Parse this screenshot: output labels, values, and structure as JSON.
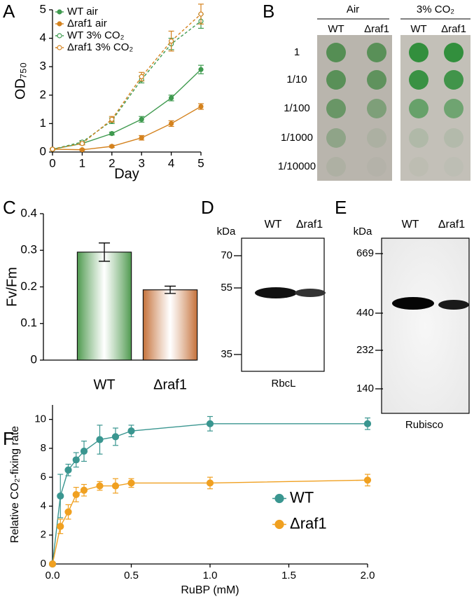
{
  "panel_labels": [
    "A",
    "B",
    "C",
    "D",
    "E",
    "F"
  ],
  "chart_data": [
    {
      "type": "line",
      "xlabel": "Day",
      "ylabel": "OD₇₅₀",
      "x": [
        0,
        1,
        2,
        3,
        4,
        5
      ],
      "xlim": [
        0,
        5
      ],
      "xticks": [
        0,
        1,
        2,
        3,
        4,
        5
      ],
      "ylim": [
        0,
        5
      ],
      "yticks": [
        0,
        1,
        2,
        3,
        4,
        5
      ],
      "legend": "upper left",
      "series": [
        {
          "name": "WT air",
          "color": "#3f9a4f",
          "marker": "filled",
          "dashed": false,
          "values": [
            0.1,
            0.3,
            0.65,
            1.15,
            1.9,
            2.9
          ],
          "errors": [
            0.03,
            0.04,
            0.05,
            0.1,
            0.1,
            0.15
          ]
        },
        {
          "name": "Δraf1 air",
          "color": "#d4821e",
          "marker": "filled",
          "dashed": false,
          "values": [
            0.1,
            0.08,
            0.2,
            0.5,
            1.0,
            1.6
          ],
          "errors": [
            0.03,
            0.03,
            0.04,
            0.08,
            0.1,
            0.1
          ]
        },
        {
          "name": "WT 3% CO₂",
          "color": "#3f9a4f",
          "marker": "open",
          "dashed": true,
          "values": [
            0.1,
            0.35,
            1.1,
            2.55,
            3.8,
            4.6
          ],
          "errors": [
            0.03,
            0.05,
            0.1,
            0.12,
            0.2,
            0.25
          ]
        },
        {
          "name": "Δraf1 3% CO₂",
          "color": "#d4821e",
          "marker": "open",
          "dashed": true,
          "values": [
            0.1,
            0.3,
            1.15,
            2.65,
            3.9,
            4.85
          ],
          "errors": [
            0.03,
            0.05,
            0.1,
            0.15,
            0.35,
            0.35
          ]
        }
      ]
    },
    {
      "type": "bar",
      "ylabel": "Fv/Fm",
      "categories": [
        "WT",
        "Δraf1"
      ],
      "values": [
        0.295,
        0.192
      ],
      "errors": [
        0.025,
        0.01
      ],
      "colors": [
        "#4f9a4f",
        "#c5713a"
      ],
      "ylim": [
        0,
        0.4
      ],
      "yticks": [
        0,
        0.1,
        0.2,
        0.3,
        0.4
      ]
    },
    {
      "type": "line",
      "xlabel": "RuBP (mM)",
      "ylabel": "Relative CO₂-fixing rate",
      "x": [
        0,
        0.05,
        0.1,
        0.15,
        0.2,
        0.3,
        0.4,
        0.5,
        1.0,
        2.0
      ],
      "xlim": [
        0,
        2
      ],
      "xticks": [
        {
          "value": 0,
          "label": "0.0"
        },
        {
          "value": 0.5,
          "label": "0.5"
        },
        {
          "value": 1,
          "label": "1.0"
        },
        {
          "value": 1.5,
          "label": "1.5"
        },
        {
          "value": 2,
          "label": "2.0"
        }
      ],
      "ylim": [
        0,
        11
      ],
      "yticks": [
        0,
        2,
        4,
        6,
        8,
        10
      ],
      "legend": "center right",
      "series": [
        {
          "name": "WT",
          "color": "#3a9690",
          "marker": "filled",
          "dashed": false,
          "values": [
            0,
            4.7,
            6.5,
            7.2,
            7.8,
            8.6,
            8.8,
            9.2,
            9.7,
            9.7
          ],
          "errors": [
            0,
            1.5,
            0.4,
            0.5,
            0.7,
            1.0,
            0.6,
            0.4,
            0.5,
            0.4
          ]
        },
        {
          "name": "Δraf1",
          "color": "#f0a020",
          "marker": "filled",
          "dashed": false,
          "values": [
            0,
            2.6,
            3.6,
            4.8,
            5.1,
            5.4,
            5.4,
            5.6,
            5.6,
            5.8
          ],
          "errors": [
            0,
            0.5,
            0.5,
            0.5,
            0.4,
            0.3,
            0.5,
            0.3,
            0.4,
            0.4
          ]
        }
      ]
    }
  ],
  "spot_assay": {
    "conditions": [
      "Air",
      "3% CO₂"
    ],
    "strains": [
      "WT",
      "Δraf1",
      "WT",
      "Δraf1"
    ],
    "dilutions": [
      "1",
      "1/10",
      "1/100",
      "1/1000",
      "1/10000"
    ]
  },
  "blot_d": {
    "unit": "kDa",
    "lanes": [
      "WT",
      "Δraf1"
    ],
    "markers": [
      "70",
      "55",
      "35"
    ],
    "caption": "RbcL"
  },
  "blot_e": {
    "unit": "kDa",
    "lanes": [
      "WT",
      "Δraf1"
    ],
    "markers": [
      "669",
      "440",
      "232",
      "140"
    ],
    "caption": "Rubisco"
  }
}
